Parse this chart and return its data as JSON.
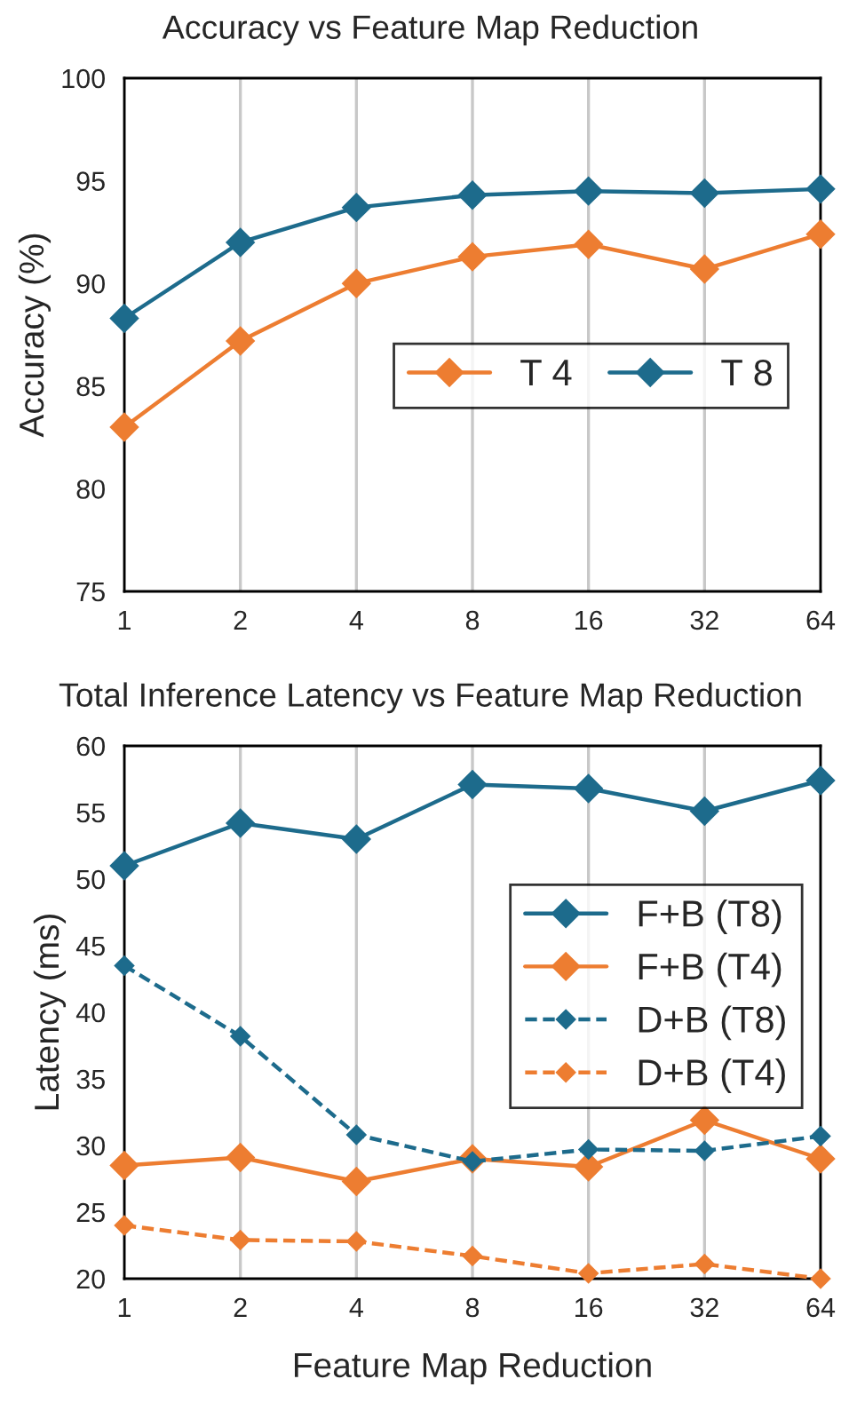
{
  "chart_data": [
    {
      "type": "line",
      "title": "Accuracy vs Feature Map Reduction",
      "ylabel": "Accuracy (%)",
      "categories": [
        "1",
        "2",
        "4",
        "8",
        "16",
        "32",
        "64"
      ],
      "ylim": [
        75,
        100
      ],
      "yticks": [
        75,
        80,
        85,
        90,
        95,
        100
      ],
      "grid": "x",
      "legend": "right",
      "marker": "diamond",
      "line_style": "solid",
      "series": [
        {
          "name": "T 4",
          "color": "#ed7d31",
          "values": [
            83.0,
            87.2,
            90.0,
            91.3,
            91.9,
            90.7,
            92.4
          ]
        },
        {
          "name": "T 8",
          "color": "#1d6b8c",
          "values": [
            88.3,
            92.0,
            93.7,
            94.3,
            94.5,
            94.4,
            94.6
          ]
        }
      ]
    },
    {
      "type": "line",
      "title": "Total Inference Latency vs Feature Map Reduction",
      "xlabel": "Feature Map Reduction",
      "ylabel": "Latency (ms)",
      "categories": [
        "1",
        "2",
        "4",
        "8",
        "16",
        "32",
        "64"
      ],
      "ylim": [
        20,
        60
      ],
      "yticks": [
        20,
        25,
        30,
        35,
        40,
        45,
        50,
        55,
        60
      ],
      "grid": "x",
      "legend": "right",
      "marker": "diamond",
      "series": [
        {
          "name": "F+B (T8)",
          "color": "#1d6b8c",
          "line_style": "solid",
          "values": [
            51.0,
            54.2,
            53.0,
            57.1,
            56.8,
            55.1,
            57.4
          ]
        },
        {
          "name": "F+B (T4)",
          "color": "#ed7d31",
          "line_style": "solid",
          "values": [
            28.5,
            29.1,
            27.3,
            29.0,
            28.4,
            31.9,
            29.0
          ]
        },
        {
          "name": "D+B (T8)",
          "color": "#1d6b8c",
          "line_style": "dashed",
          "values": [
            43.5,
            38.2,
            30.8,
            28.8,
            29.7,
            29.6,
            30.7
          ]
        },
        {
          "name": "D+B (T4)",
          "color": "#ed7d31",
          "line_style": "dashed",
          "values": [
            24.0,
            22.9,
            22.8,
            21.7,
            20.4,
            21.1,
            20.0
          ]
        }
      ]
    }
  ]
}
